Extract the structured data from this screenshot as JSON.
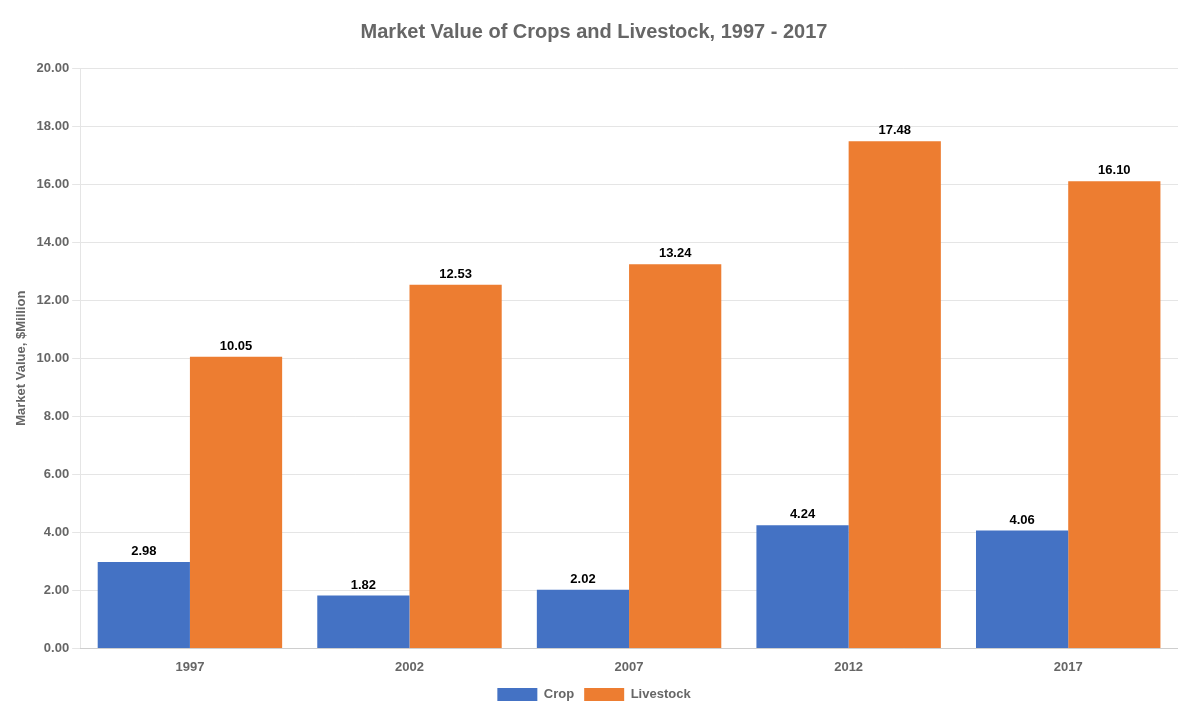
{
  "chart_data": {
    "type": "bar",
    "title": "Market Value of Crops and Livestock, 1997 - 2017",
    "categories": [
      "1997",
      "2002",
      "2007",
      "2012",
      "2017"
    ],
    "series": [
      {
        "name": "Crop",
        "color": "#4472C4",
        "values": [
          2.98,
          1.82,
          2.02,
          4.24,
          4.06
        ],
        "value_labels": [
          "2.98",
          "1.82",
          "2.02",
          "4.24",
          "4.06"
        ]
      },
      {
        "name": "Livestock",
        "color": "#ED7D31",
        "values": [
          10.05,
          12.53,
          13.24,
          17.48,
          16.1
        ],
        "value_labels": [
          "10.05",
          "12.53",
          "13.24",
          "17.48",
          "16.10"
        ]
      }
    ],
    "ylabel": "Market Value, $Million",
    "ylim": [
      0,
      20.0
    ],
    "yticks": [
      {
        "value": 0,
        "label": "0.00"
      },
      {
        "value": 2,
        "label": "2.00"
      },
      {
        "value": 4,
        "label": "4.00"
      },
      {
        "value": 6,
        "label": "6.00"
      },
      {
        "value": 8,
        "label": "8.00"
      },
      {
        "value": 10,
        "label": "10.00"
      },
      {
        "value": 12,
        "label": "12.00"
      },
      {
        "value": 14,
        "label": "14.00"
      },
      {
        "value": 16,
        "label": "16.00"
      },
      {
        "value": 18,
        "label": "18.00"
      },
      {
        "value": 20,
        "label": "20.00"
      }
    ],
    "grid": true,
    "legend": "bottom",
    "data_labels": true
  }
}
